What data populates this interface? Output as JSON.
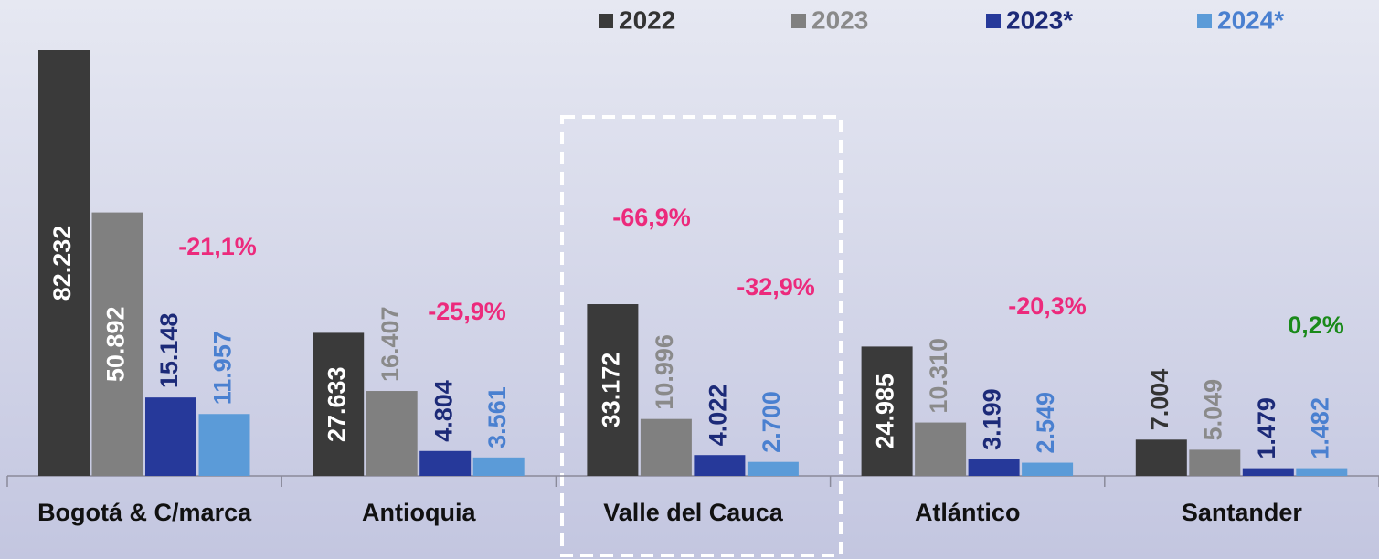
{
  "chart_data": {
    "type": "bar",
    "categories": [
      "Bogotá & C/marca",
      "Antioquia",
      "Valle del Cauca",
      "Atlántico",
      "Santander"
    ],
    "series": [
      {
        "name": "2022",
        "color": "#3a3a3a",
        "label_color": "#333333",
        "values": [
          82232,
          27633,
          33172,
          24985,
          7004
        ],
        "value_labels": [
          "82.232",
          "27.633",
          "33.172",
          "24.985",
          "7.004"
        ]
      },
      {
        "name": "2023",
        "color": "#808080",
        "label_color": "#8a8a8a",
        "values": [
          50892,
          16407,
          10996,
          10310,
          5049
        ],
        "value_labels": [
          "50.892",
          "16.407",
          "10.996",
          "10.310",
          "5.049"
        ]
      },
      {
        "name": "2023*",
        "color": "#26399a",
        "label_color": "#1c2a78",
        "values": [
          15148,
          4804,
          4022,
          3199,
          1479
        ],
        "value_labels": [
          "15.148",
          "4.804",
          "4.022",
          "3.199",
          "1.479"
        ]
      },
      {
        "name": "2024*",
        "color": "#5b9bd8",
        "label_color": "#4a80d0",
        "values": [
          11957,
          3561,
          2700,
          2549,
          1482
        ],
        "value_labels": [
          "11.957",
          "3.561",
          "2.700",
          "2.549",
          "1.482"
        ]
      }
    ],
    "annotations": [
      {
        "text": "-21,1%",
        "color": "#ec2a7c"
      },
      {
        "text": "-25,9%",
        "color": "#ec2a7c"
      },
      {
        "text": "-66,9%",
        "color": "#ec2a7c"
      },
      {
        "text": "-32,9%",
        "color": "#ec2a7c"
      },
      {
        "text": "-20,3%",
        "color": "#ec2a7c"
      },
      {
        "text": "0,2%",
        "color": "#1a8a1a"
      }
    ]
  }
}
